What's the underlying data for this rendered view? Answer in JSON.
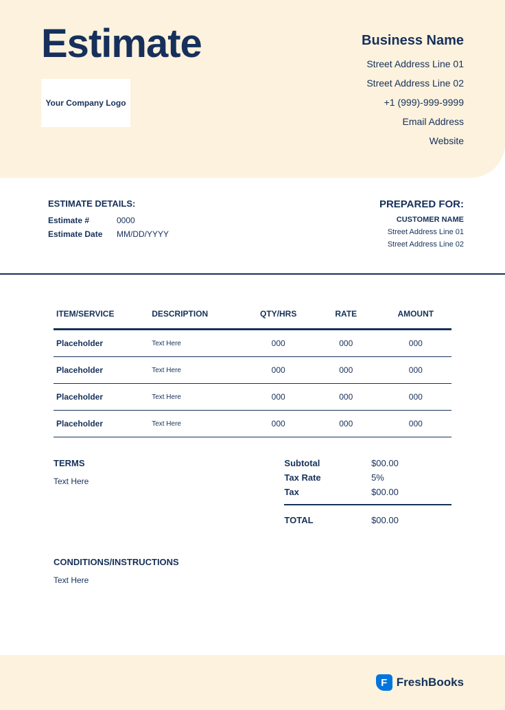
{
  "header": {
    "title": "Estimate",
    "logo_text": "Your Company Logo",
    "business_name": "Business Name",
    "address1": "Street Address Line 01",
    "address2": "Street Address Line 02",
    "phone": "+1 (999)-999-9999",
    "email": "Email Address",
    "website": "Website"
  },
  "details": {
    "heading": "ESTIMATE DETAILS:",
    "number_label": "Estimate #",
    "number_value": "0000",
    "date_label": "Estimate Date",
    "date_value": "MM/DD/YYYY"
  },
  "prepared": {
    "heading": "PREPARED FOR:",
    "customer_name": "CUSTOMER NAME",
    "address1": "Street Address Line 01",
    "address2": "Street Address Line 02"
  },
  "table": {
    "columns": {
      "item": "ITEM/SERVICE",
      "description": "DESCRIPTION",
      "qty": "QTY/HRS",
      "rate": "RATE",
      "amount": "AMOUNT"
    },
    "rows": [
      {
        "item": "Placeholder",
        "desc": "Text Here",
        "qty": "000",
        "rate": "000",
        "amount": "000"
      },
      {
        "item": "Placeholder",
        "desc": "Text Here",
        "qty": "000",
        "rate": "000",
        "amount": "000"
      },
      {
        "item": "Placeholder",
        "desc": "Text Here",
        "qty": "000",
        "rate": "000",
        "amount": "000"
      },
      {
        "item": "Placeholder",
        "desc": "Text Here",
        "qty": "000",
        "rate": "000",
        "amount": "000"
      }
    ]
  },
  "terms": {
    "heading": "TERMS",
    "text": "Text Here"
  },
  "totals": {
    "subtotal_label": "Subtotal",
    "subtotal_value": "$00.00",
    "taxrate_label": "Tax Rate",
    "taxrate_value": "5%",
    "tax_label": "Tax",
    "tax_value": "$00.00",
    "total_label": "TOTAL",
    "total_value": "$00.00"
  },
  "conditions": {
    "heading": "CONDITIONS/INSTRUCTIONS",
    "text": "Text Here"
  },
  "footer": {
    "icon_letter": "F",
    "brand": "FreshBooks"
  },
  "colors": {
    "bg_cream": "#fcf2de",
    "text_navy": "#16305a",
    "white": "#ffffff",
    "brand_blue": "#0075dd"
  }
}
